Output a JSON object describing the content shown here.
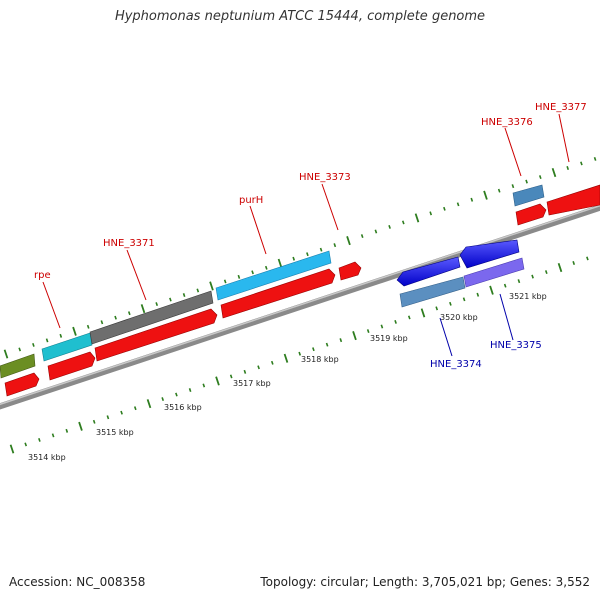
{
  "title": "Hyphomonas neptunium ATCC 15444, complete genome",
  "footer": {
    "accession": "Accession: NC_008358",
    "stats": "Topology: circular; Length: 3,705,021 bp; Genes: 3,552"
  },
  "scale_labels": [
    "3514 kbp",
    "3515 kbp",
    "3516 kbp",
    "3517 kbp",
    "3518 kbp",
    "3519 kbp",
    "3520 kbp",
    "3521 kbp"
  ],
  "gene_labels": [
    "rpe",
    "HNE_3371",
    "purH",
    "HNE_3373",
    "HNE_3376",
    "HNE_3377",
    "HNE_3374",
    "HNE_3375"
  ],
  "colors": {
    "backbone": "#8a8a8a",
    "tick": "#2e7d1f",
    "cds": "#ee1111",
    "label_forward": "#cc0000",
    "label_reverse": "#0000aa"
  }
}
